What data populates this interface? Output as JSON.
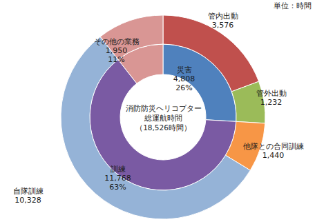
{
  "chart_data": {
    "type": "donut",
    "unit_label": "単位：時間",
    "center_text": [
      "消防防災ヘリコプター",
      "総運航時間"
    ],
    "total": {
      "value": 18526,
      "label": "（18,526時間）"
    },
    "data_labels": true,
    "rings": [
      {
        "categories": [
          "災害",
          "訓練",
          "その他の業務"
        ],
        "values": [
          4808,
          11768,
          1950
        ],
        "value_labels": [
          "4,808",
          "11,768",
          "1,950"
        ],
        "percents": [
          26,
          63,
          11
        ],
        "percent_labels": [
          "26%",
          "63%",
          "11%"
        ],
        "colors": [
          "#4f81bd",
          "#7a5aa3",
          "#d99694"
        ]
      },
      {
        "categories": [
          "管内出動",
          "管外出動",
          "他隊との合同訓練",
          "自隊訓練",
          null
        ],
        "values": [
          3576,
          1232,
          1440,
          10328,
          1950
        ],
        "value_labels": [
          "3,576",
          "1,232",
          "1,440",
          "10,328",
          null
        ],
        "colors": [
          "#c0504d",
          "#9bbb59",
          "#f79646",
          "#95b3d7",
          "#d99694"
        ]
      }
    ]
  }
}
